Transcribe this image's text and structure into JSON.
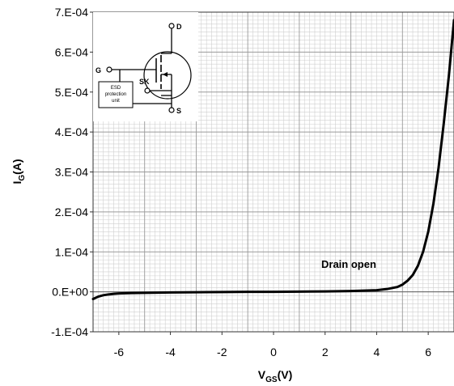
{
  "chart_data": {
    "type": "line",
    "title": "",
    "xlabel": "V",
    "xlabel_sub": "GS",
    "xlabel_suffix": "(V)",
    "ylabel": "I",
    "ylabel_sub": "G",
    "ylabel_suffix": "(A)",
    "xlim": [
      -7,
      7
    ],
    "ylim": [
      -0.0001,
      0.0007
    ],
    "x_ticks": [
      -6,
      -4,
      -2,
      0,
      2,
      4,
      6
    ],
    "x_tick_labels": [
      "-6",
      "-4",
      "-2",
      "0",
      "2",
      "4",
      "6"
    ],
    "y_ticks": [
      -0.0001,
      0,
      0.0001,
      0.0002,
      0.0003,
      0.0004,
      0.0005,
      0.0006,
      0.0007
    ],
    "y_tick_labels": [
      "-1.E-04",
      "0.E+00",
      "1.E-04",
      "2.E-04",
      "3.E-04",
      "4.E-04",
      "5.E-04",
      "6.E-04",
      "7.E-04"
    ],
    "grid": true,
    "annotation": "Drain open",
    "series": [
      {
        "color": "#000000",
        "x": [
          -7,
          -6.8,
          -6.6,
          -6.4,
          -6.2,
          -6,
          -5.5,
          -5,
          -4,
          -3,
          -2,
          -1,
          0,
          1,
          2,
          3,
          4,
          4.4,
          4.8,
          5,
          5.2,
          5.4,
          5.6,
          5.8,
          6,
          6.2,
          6.4,
          6.6,
          6.8,
          7
        ],
        "y": [
          -1.8e-05,
          -1.2e-05,
          -8.5e-06,
          -6.5e-06,
          -5e-06,
          -4e-06,
          -3e-06,
          -2.5e-06,
          -1.5e-06,
          -1e-06,
          -5e-07,
          0,
          0,
          5e-07,
          1e-06,
          2e-06,
          4e-06,
          7e-06,
          1.2e-05,
          1.8e-05,
          2.8e-05,
          4.2e-05,
          6.5e-05,
          0.0001,
          0.00015,
          0.00022,
          0.00031,
          0.00042,
          0.00054,
          0.00068
        ]
      }
    ]
  },
  "inset": {
    "label_d": "D",
    "label_g": "G",
    "label_sk": "SK",
    "label_s": "S",
    "esd_line1": "ESD",
    "esd_line2": "protection",
    "esd_line3": "unit"
  }
}
